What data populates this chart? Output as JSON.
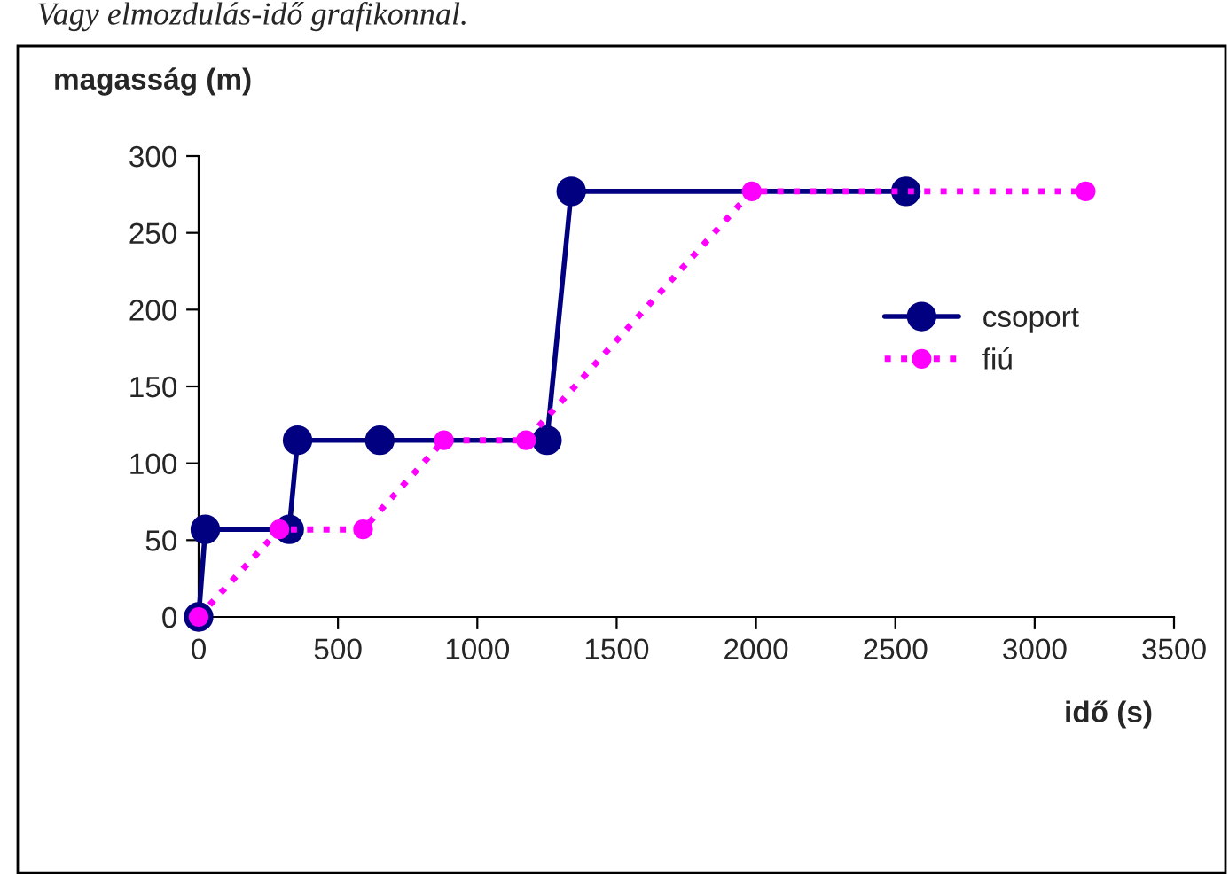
{
  "chart_data": {
    "type": "line",
    "xlabel": "idő (s)",
    "ylabel": "magasság (m)",
    "annotations": [
      "Vagy elmozdulás-idő grafikonnal."
    ],
    "series": [
      {
        "name": "csoport",
        "color": "#000080",
        "marker": "circle",
        "line_style": "solid",
        "x": [
          0,
          24,
          325,
          355,
          650,
          1250,
          1337,
          2538
        ],
        "values": [
          0,
          57,
          57,
          115,
          115,
          115,
          277,
          277
        ]
      },
      {
        "name": "fiú",
        "color": "#ff00ff",
        "marker": "circle",
        "line_style": "dotted",
        "x": [
          0,
          290,
          590,
          880,
          1175,
          1985,
          3183
        ],
        "values": [
          0,
          57,
          57,
          115,
          115,
          277,
          277
        ]
      }
    ],
    "xlim": [
      0,
      3500
    ],
    "xticks": [
      0,
      500,
      1000,
      1500,
      2000,
      2500,
      3000,
      3500
    ],
    "ylim": [
      0,
      300
    ],
    "yticks": [
      0,
      50,
      100,
      150,
      200,
      250,
      300
    ],
    "grid": false,
    "legend": "right"
  }
}
